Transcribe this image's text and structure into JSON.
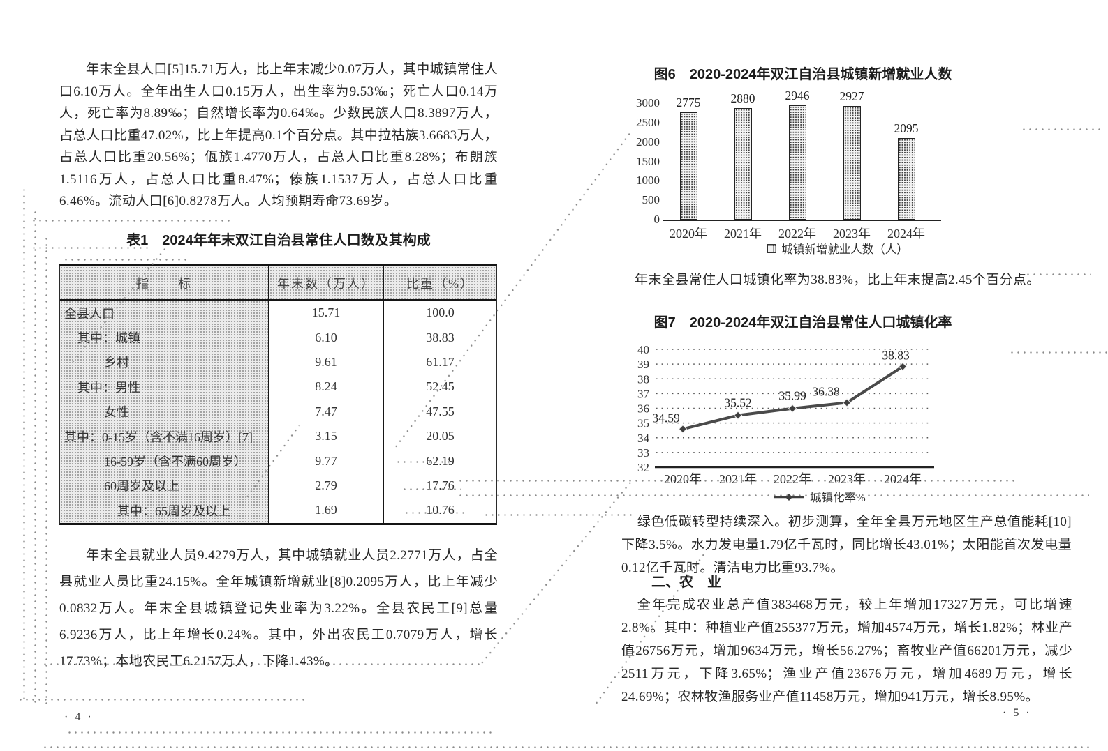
{
  "doc": {
    "left_page": {
      "para_population": "年末全县人口[5]15.71万人，比上年末减少0.07万人，其中城镇常住人口6.10万人。全年出生人口0.15万人，出生率为9.53‰；死亡人口0.14万人，死亡率为8.89‰；自然增长率为0.64‰。少数民族人口8.3897万人，占总人口比重47.02%，比上年提高0.1个百分点。其中拉祜族3.6683万人，占总人口比重20.56%；佤族1.4770万人，占总人口比重8.28%；布朗族1.5116万人，占总人口比重8.47%；傣族1.1537万人，占总人口比重6.46%。流动人口[6]0.8278万人。人均预期寿命73.69岁。",
      "table_title": "表1　2024年年末双江自治县常住人口数及其构成",
      "table": {
        "headers": [
          "指　　标",
          "年末数（万人）",
          "比重（%）"
        ],
        "rows": [
          {
            "label": "全县人口",
            "indent": 0,
            "value": "15.71",
            "share": "100.0"
          },
          {
            "label": "其中：城镇",
            "indent": 1,
            "value": "6.10",
            "share": "38.83"
          },
          {
            "label": "乡村",
            "indent": 3,
            "value": "9.61",
            "share": "61.17"
          },
          {
            "label": "其中：男性",
            "indent": 1,
            "value": "8.24",
            "share": "52.45"
          },
          {
            "label": "女性",
            "indent": 3,
            "value": "7.47",
            "share": "47.55"
          },
          {
            "label": "其中：0-15岁（含不满16周岁）[7]",
            "indent": 0,
            "value": "3.15",
            "share": "20.05"
          },
          {
            "label": "16-59岁（含不满60周岁）",
            "indent": 3,
            "value": "9.77",
            "share": "62.19"
          },
          {
            "label": "60周岁及以上",
            "indent": 3,
            "value": "2.79",
            "share": "17.76"
          },
          {
            "label": "其中：65周岁及以上",
            "indent": 4,
            "value": "1.69",
            "share": "10.76"
          }
        ]
      },
      "para_employment": "年末全县就业人员9.4279万人，其中城镇就业人员2.2771万人，占全县就业人员比重24.15%。全年城镇新增就业[8]0.2095万人，比上年减少0.0832万人。年末全县城镇登记失业率为3.22%。全县农民工[9]总量6.9236万人，比上年增长0.24%。其中，外出农民工0.7079万人，增长17.73%；本地农民工6.2157万人，下降1.43%。",
      "page_number": "· 4 ·"
    },
    "right_page": {
      "para_urbanization": "年末全县常住人口城镇化率为38.83%，比上年末提高2.45个百分点。",
      "para_green": "绿色低碳转型持续深入。初步测算，全年全县万元地区生产总值能耗[10]下降3.5%。水力发电量1.79亿千瓦时，同比增长43.01%；太阳能首次发电量0.12亿千瓦时。清洁电力比重93.7%。",
      "section_heading": "二、农　业",
      "para_agriculture": "全年完成农业总产值383468万元，较上年增加17327万元，可比增速2.8%。其中：种植业产值255377万元，增加4574万元，增长1.82%；林业产值26756万元，增加9634万元，增长56.27%；畜牧业产值66201万元，减少2511万元，下降3.65%；渔业产值23676万元，增加4689万元，增长24.69%；农林牧渔服务业产值11458万元，增加941万元，增长8.95%。",
      "page_number": "· 5 ·"
    }
  },
  "chart_data": [
    {
      "id": "fig6",
      "type": "bar",
      "title": "图6　2020-2024年双江自治县城镇新增就业人数",
      "categories": [
        "2020年",
        "2021年",
        "2022年",
        "2023年",
        "2024年"
      ],
      "values": [
        2775,
        2880,
        2946,
        2927,
        2095
      ],
      "legend": "城镇新增就业人数（人）",
      "xlabel": "",
      "ylabel": "",
      "ylim": [
        0,
        3000
      ],
      "yticks": [
        0,
        500,
        1000,
        1500,
        2000,
        2500,
        3000
      ],
      "grid": false,
      "legend_position": "bottom",
      "bar_fill": "dotted-pattern",
      "ink_color": "#222222"
    },
    {
      "id": "fig7",
      "type": "line",
      "title": "图7　2020-2024年双江自治县常住人口城镇化率",
      "categories": [
        "2020年",
        "2021年",
        "2022年",
        "2023年",
        "2024年"
      ],
      "values": [
        34.59,
        35.52,
        35.99,
        36.38,
        38.83
      ],
      "legend": "城镇化率%",
      "xlabel": "",
      "ylabel": "",
      "ylim": [
        32,
        40
      ],
      "yticks": [
        32,
        33,
        34,
        35,
        36,
        37,
        38,
        39,
        40
      ],
      "grid": true,
      "grid_style": "dotted",
      "marker": "diamond",
      "legend_position": "bottom",
      "ink_color": "#4a4a4a"
    }
  ]
}
